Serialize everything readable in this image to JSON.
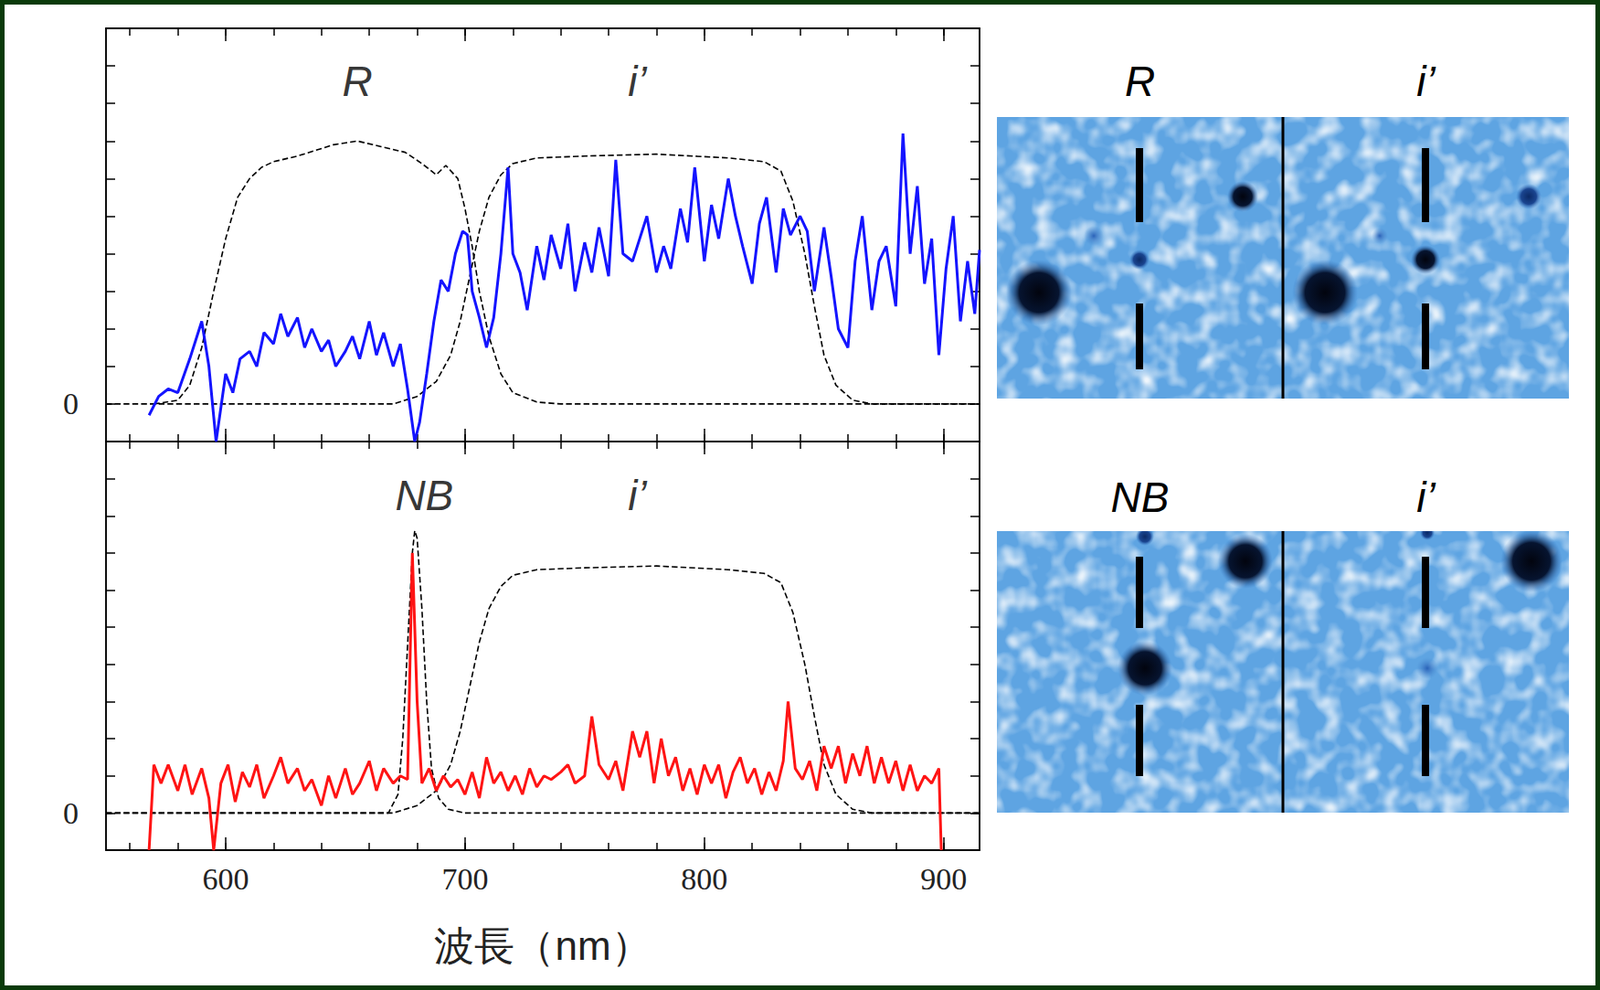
{
  "chart_data": [
    {
      "type": "line",
      "tick_labels": "y",
      "xlim": [
        550,
        915
      ],
      "xticks": [
        600,
        700,
        800,
        900
      ],
      "ylim": [
        -1,
        10
      ],
      "yticks": [
        0
      ],
      "annotations": [
        {
          "text": "R",
          "x": 655,
          "y": 8.6
        },
        {
          "text": "i’",
          "x": 772,
          "y": 8.6
        }
      ],
      "series": [
        {
          "color": "#000000",
          "line_style": "dashed",
          "x": [
            570,
            580,
            585,
            590,
            595,
            600,
            605,
            610,
            615,
            620,
            630,
            645,
            655,
            665,
            675,
            682,
            688,
            692,
            697,
            700,
            703,
            706,
            710,
            715,
            720,
            730,
            740,
            915
          ],
          "values": [
            0,
            0.1,
            0.5,
            1.5,
            3.0,
            4.4,
            5.5,
            6.0,
            6.3,
            6.45,
            6.6,
            6.9,
            7.0,
            6.85,
            6.7,
            6.4,
            6.1,
            6.35,
            6.0,
            5.2,
            4.2,
            3.0,
            1.8,
            0.8,
            0.3,
            0.05,
            0,
            0
          ]
        },
        {
          "color": "#000000",
          "line_style": "dashed",
          "x": [
            550,
            670,
            680,
            688,
            694,
            698,
            702,
            706,
            710,
            715,
            720,
            730,
            750,
            780,
            810,
            825,
            832,
            837,
            842,
            846,
            850,
            855,
            862,
            870,
            915
          ],
          "values": [
            0,
            0,
            0.2,
            0.6,
            1.3,
            2.2,
            3.4,
            4.6,
            5.5,
            6.1,
            6.4,
            6.55,
            6.6,
            6.65,
            6.55,
            6.45,
            6.2,
            5.4,
            4.0,
            2.6,
            1.3,
            0.5,
            0.1,
            0,
            0
          ]
        },
        {
          "color": "#1414ff",
          "line_style": "solid",
          "x": [
            568,
            572,
            576,
            580,
            585,
            588,
            590,
            593,
            596,
            600,
            603,
            606,
            610,
            613,
            616,
            620,
            623,
            626,
            630,
            633,
            636,
            640,
            643,
            646,
            650,
            653,
            656,
            660,
            663,
            666,
            670,
            673,
            676,
            679,
            681,
            684,
            687,
            690,
            693,
            696,
            699,
            701,
            703,
            706,
            709,
            712,
            715,
            718,
            720,
            723,
            726,
            730,
            733,
            736,
            740,
            743,
            746,
            750,
            753,
            756,
            760,
            763,
            766,
            770,
            773,
            776,
            780,
            783,
            786,
            790,
            793,
            796,
            800,
            803,
            806,
            810,
            813,
            816,
            820,
            823,
            826,
            830,
            833,
            836,
            840,
            843,
            846,
            850,
            853,
            856,
            860,
            863,
            866,
            870,
            873,
            876,
            880,
            883,
            886,
            889,
            892,
            895,
            898,
            901,
            904,
            907,
            910,
            913,
            915
          ],
          "values": [
            -0.3,
            0.2,
            0.4,
            0.3,
            1.2,
            1.8,
            2.2,
            1.0,
            -1.0,
            0.8,
            0.3,
            1.2,
            1.4,
            1.0,
            1.9,
            1.6,
            2.4,
            1.8,
            2.3,
            1.5,
            2.0,
            1.4,
            1.7,
            1.0,
            1.4,
            1.8,
            1.2,
            2.2,
            1.3,
            1.9,
            1.0,
            1.6,
            0.4,
            -1.0,
            -0.5,
            0.8,
            2.2,
            3.3,
            3.0,
            4.0,
            4.6,
            4.5,
            3.0,
            2.3,
            1.5,
            2.3,
            4.0,
            6.3,
            4.0,
            3.5,
            2.5,
            4.2,
            3.3,
            4.5,
            3.6,
            4.8,
            3.0,
            4.3,
            3.5,
            4.7,
            3.4,
            6.5,
            4.0,
            3.8,
            4.4,
            5.0,
            3.5,
            4.2,
            3.6,
            5.2,
            4.3,
            6.3,
            3.8,
            5.3,
            4.4,
            6.0,
            5.0,
            4.2,
            3.2,
            4.8,
            5.5,
            3.5,
            5.2,
            4.5,
            5.0,
            4.6,
            3.0,
            4.7,
            3.4,
            2.0,
            1.5,
            3.8,
            5.0,
            2.5,
            3.8,
            4.2,
            2.6,
            7.2,
            4.0,
            5.8,
            3.2,
            4.4,
            1.3,
            3.6,
            5.0,
            2.2,
            3.8,
            2.4,
            4.1
          ]
        }
      ]
    },
    {
      "type": "line",
      "xlabel": "波長（nm）",
      "xlim": [
        550,
        915
      ],
      "xticks": [
        600,
        700,
        800,
        900
      ],
      "ylim": [
        -1,
        10
      ],
      "yticks": [
        0
      ],
      "annotations": [
        {
          "text": "NB",
          "x": 683,
          "y": 8.55
        },
        {
          "text": "i’",
          "x": 772,
          "y": 8.55
        }
      ],
      "series": [
        {
          "color": "#000000",
          "line_style": "dashed",
          "x": [
            550,
            668,
            672,
            674,
            676,
            678,
            679,
            680,
            682,
            684,
            686,
            689,
            693,
            700,
            915
          ],
          "values": [
            0,
            0,
            0.5,
            2.0,
            4.5,
            7.0,
            7.6,
            7.4,
            5.5,
            3.0,
            1.2,
            0.4,
            0.1,
            0,
            0
          ]
        },
        {
          "color": "#000000",
          "line_style": "dashed",
          "x": [
            550,
            670,
            680,
            688,
            694,
            698,
            702,
            706,
            710,
            715,
            720,
            730,
            750,
            780,
            810,
            825,
            832,
            837,
            842,
            846,
            850,
            855,
            862,
            870,
            915
          ],
          "values": [
            0,
            0,
            0.2,
            0.6,
            1.3,
            2.2,
            3.4,
            4.6,
            5.5,
            6.1,
            6.4,
            6.55,
            6.6,
            6.65,
            6.55,
            6.45,
            6.2,
            5.4,
            4.0,
            2.6,
            1.3,
            0.5,
            0.1,
            0,
            0
          ]
        },
        {
          "color": "#ff1414",
          "line_style": "solid",
          "x": [
            568,
            570,
            573,
            576,
            580,
            583,
            586,
            590,
            593,
            595,
            598,
            601,
            604,
            607,
            610,
            613,
            616,
            620,
            623,
            626,
            630,
            633,
            636,
            640,
            643,
            646,
            650,
            653,
            656,
            660,
            663,
            666,
            670,
            673,
            676,
            678,
            680,
            682,
            685,
            688,
            691,
            694,
            697,
            700,
            703,
            706,
            709,
            712,
            715,
            718,
            721,
            724,
            727,
            730,
            733,
            736,
            740,
            743,
            746,
            750,
            753,
            756,
            760,
            763,
            766,
            770,
            773,
            776,
            779,
            782,
            785,
            788,
            791,
            794,
            797,
            800,
            803,
            806,
            809,
            812,
            815,
            818,
            821,
            824,
            827,
            830,
            833,
            835,
            838,
            841,
            844,
            847,
            850,
            853,
            856,
            859,
            862,
            865,
            868,
            871,
            874,
            877,
            880,
            883,
            886,
            889,
            892,
            895,
            898,
            899
          ],
          "values": [
            -1.0,
            1.3,
            0.8,
            1.3,
            0.6,
            1.3,
            0.5,
            1.2,
            0.4,
            -1.0,
            0.8,
            1.3,
            0.3,
            1.1,
            0.7,
            1.3,
            0.4,
            1.0,
            1.5,
            0.8,
            1.2,
            0.6,
            0.9,
            0.2,
            1.0,
            0.4,
            1.2,
            0.5,
            0.8,
            1.4,
            0.6,
            1.2,
            0.8,
            1.0,
            0.9,
            7.0,
            3.0,
            0.8,
            1.2,
            0.6,
            1.0,
            0.7,
            0.9,
            0.5,
            1.1,
            0.4,
            1.5,
            0.8,
            1.1,
            0.6,
            1.0,
            0.5,
            1.2,
            0.7,
            1.0,
            0.9,
            1.1,
            1.3,
            0.8,
            1.0,
            2.6,
            1.3,
            0.9,
            1.4,
            0.6,
            2.2,
            1.5,
            2.2,
            0.8,
            2.0,
            1.0,
            1.5,
            0.6,
            1.2,
            0.5,
            1.3,
            0.8,
            1.3,
            0.4,
            1.1,
            1.5,
            0.8,
            1.2,
            0.5,
            1.1,
            0.6,
            1.4,
            3.0,
            1.2,
            0.9,
            1.4,
            0.6,
            1.8,
            1.2,
            1.8,
            0.8,
            1.6,
            1.0,
            1.8,
            0.8,
            1.5,
            0.8,
            1.4,
            0.6,
            1.3,
            0.6,
            1.0,
            0.8,
            1.2,
            -1.0
          ]
        }
      ]
    }
  ],
  "panels": [
    {
      "labels": [
        "R",
        "i’"
      ]
    },
    {
      "labels": [
        "NB",
        "i’"
      ]
    }
  ]
}
